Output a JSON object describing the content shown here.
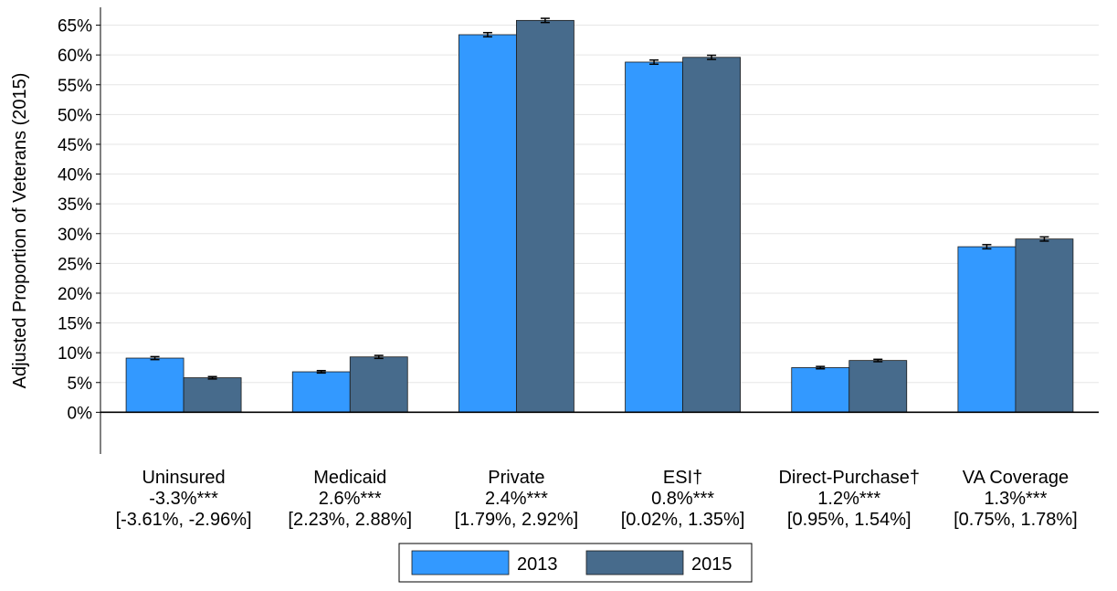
{
  "chart_data": {
    "type": "bar",
    "title": "",
    "xlabel": "",
    "ylabel": "Adjusted Proportion of Veterans (2015)",
    "ylim": [
      -7,
      68
    ],
    "yticks": [
      0,
      5,
      10,
      15,
      20,
      25,
      30,
      35,
      40,
      45,
      50,
      55,
      60,
      65
    ],
    "ytick_suffix": "%",
    "grid": true,
    "legend_position": "bottom",
    "categories": [
      {
        "name": "Uninsured",
        "change": "-3.3%***",
        "ci": "[-3.61%, -2.96%]"
      },
      {
        "name": "Medicaid",
        "change": "2.6%***",
        "ci": "[2.23%, 2.88%]"
      },
      {
        "name": "Private",
        "change": "2.4%***",
        "ci": "[1.79%, 2.92%]"
      },
      {
        "name": "ESI†",
        "change": "0.8%***",
        "ci": "[0.02%, 1.35%]"
      },
      {
        "name": "Direct-Purchase†",
        "change": "1.2%***",
        "ci": "[0.95%, 1.54%]"
      },
      {
        "name": "VA Coverage",
        "change": "1.3%***",
        "ci": "[0.75%, 1.78%]"
      }
    ],
    "series": [
      {
        "name": "2013",
        "color": "#3399ff",
        "values": [
          9.1,
          6.8,
          63.4,
          58.8,
          7.5,
          27.8
        ],
        "err": [
          0.25,
          0.2,
          0.35,
          0.35,
          0.2,
          0.35
        ]
      },
      {
        "name": "2015",
        "color": "#476b8c",
        "values": [
          5.8,
          9.3,
          65.8,
          59.6,
          8.7,
          29.1
        ],
        "err": [
          0.2,
          0.25,
          0.35,
          0.35,
          0.2,
          0.35
        ]
      }
    ]
  }
}
